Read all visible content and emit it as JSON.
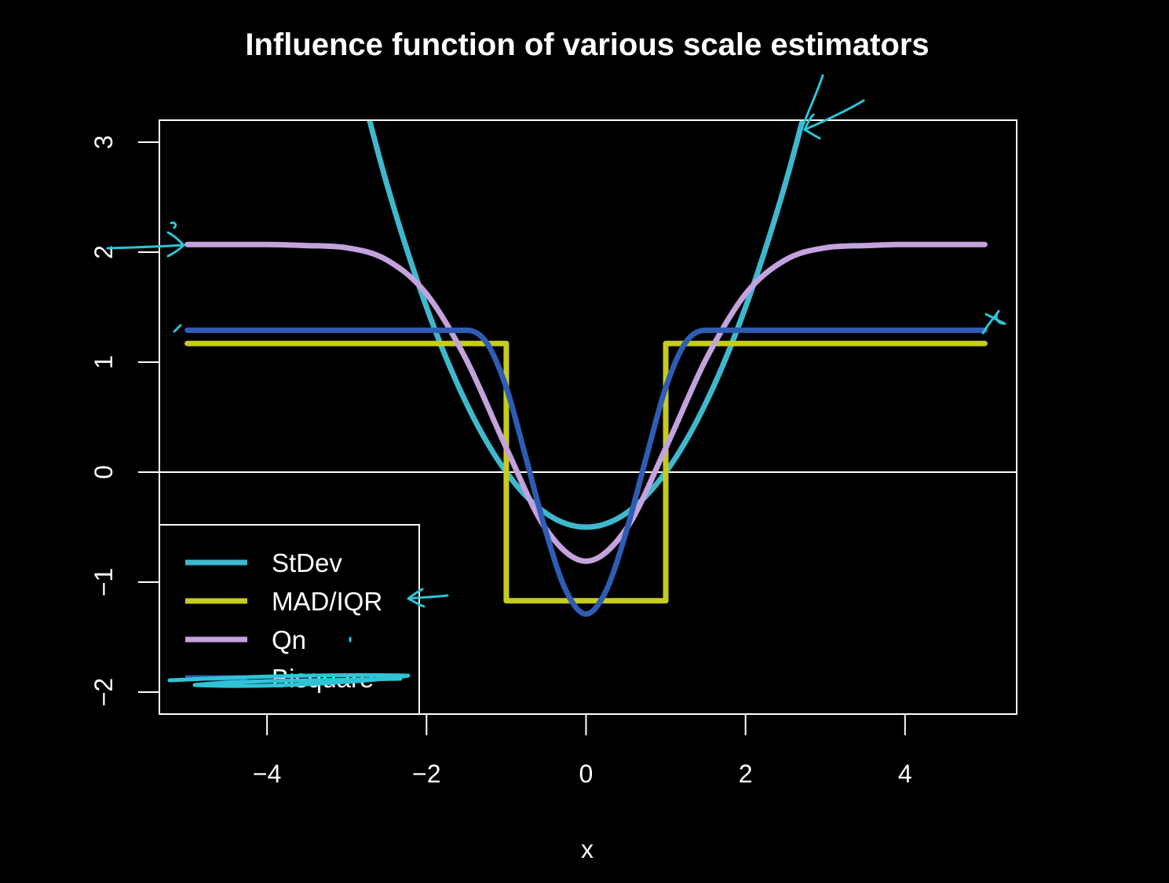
{
  "chart_data": {
    "type": "line",
    "title": "Influence function of various scale estimators",
    "xlabel": "x",
    "ylabel": "",
    "xlim": [
      -5.35,
      5.4
    ],
    "ylim": [
      -2.2,
      3.2
    ],
    "xticks": [
      -4,
      -2,
      0,
      2,
      4
    ],
    "yticks": [
      -2,
      -1,
      0,
      1,
      2,
      3
    ],
    "grid": false,
    "background": "#000000",
    "foreground": "#ffffff",
    "reference_line_y": 0,
    "legend": {
      "position": "bottom-left",
      "entries": [
        "StDev",
        "MAD/IQR",
        "Qn",
        "Bisquare"
      ]
    },
    "series": [
      {
        "name": "StDev",
        "color": "#3fb8cc",
        "x": [
          -3.0,
          -2.5,
          -2.0,
          -1.5,
          -1.0,
          -0.5,
          0.0,
          0.5,
          1.0,
          1.5,
          2.0,
          2.5,
          3.0
        ],
        "y": [
          4.0,
          2.625,
          1.5,
          0.625,
          0.0,
          -0.375,
          -0.5,
          -0.375,
          0.0,
          0.625,
          1.5,
          2.625,
          4.0
        ]
      },
      {
        "name": "MAD/IQR",
        "color": "#c6cc1e",
        "x": [
          -5.0,
          -1.0,
          -1.0,
          1.0,
          1.0,
          5.0
        ],
        "y": [
          1.17,
          1.17,
          -1.17,
          -1.17,
          1.17,
          1.17
        ]
      },
      {
        "name": "Qn",
        "color": "#c3a2de",
        "x": [
          -5.0,
          -4.0,
          -3.5,
          -3.0,
          -2.5,
          -2.0,
          -1.5,
          -1.0,
          -0.5,
          0.0,
          0.5,
          1.0,
          1.5,
          2.0,
          2.5,
          3.0,
          3.5,
          4.0,
          5.0
        ],
        "y": [
          2.07,
          2.07,
          2.06,
          2.04,
          1.93,
          1.62,
          1.02,
          0.22,
          -0.52,
          -0.81,
          -0.52,
          0.22,
          1.02,
          1.62,
          1.93,
          2.04,
          2.06,
          2.07,
          2.07
        ]
      },
      {
        "name": "Bisquare",
        "color": "#2f5cb4",
        "x": [
          -5.0,
          -1.5,
          -1.25,
          -1.0,
          -0.75,
          -0.5,
          -0.25,
          0.0,
          0.25,
          0.5,
          0.75,
          1.0,
          1.25,
          1.5,
          5.0
        ],
        "y": [
          1.29,
          1.29,
          1.18,
          0.77,
          0.12,
          -0.55,
          -1.08,
          -1.29,
          -1.08,
          -0.55,
          0.12,
          0.77,
          1.18,
          1.29,
          1.29
        ]
      }
    ]
  }
}
